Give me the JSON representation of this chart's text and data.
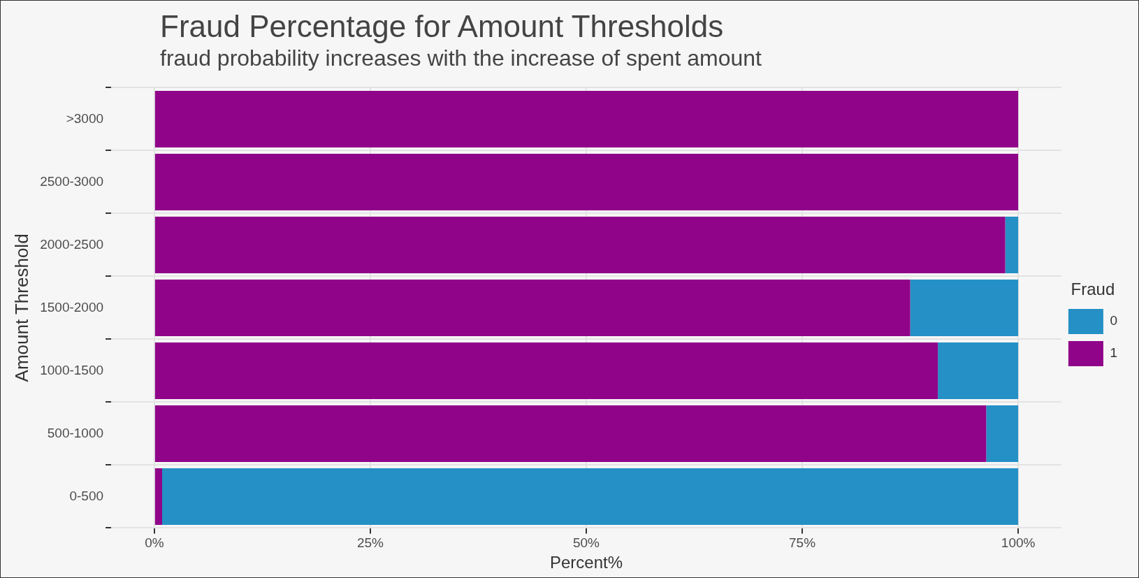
{
  "chart_data": {
    "type": "bar",
    "title": "Fraud Percentage for Amount Thresholds",
    "subtitle": "fraud probability increases with the increase of spent amount",
    "xlabel": "Percent%",
    "ylabel": "Amount Threshold",
    "legend_title": "Fraud",
    "orientation": "horizontal",
    "stacked": true,
    "categories": [
      ">3000",
      "2500-3000",
      "2000-2500",
      "1500-2000",
      "1000-1500",
      "500-1000",
      "0-500"
    ],
    "series": [
      {
        "name": "1",
        "color": "#8f0489",
        "values": [
          100,
          100,
          98.5,
          87.5,
          90.7,
          96.3,
          0.9
        ]
      },
      {
        "name": "0",
        "color": "#2590c5",
        "values": [
          0,
          0,
          1.5,
          12.5,
          9.3,
          3.7,
          99.1
        ]
      }
    ],
    "xlim": [
      -5,
      105
    ],
    "xticks": [
      {
        "value": 0,
        "label": "0%"
      },
      {
        "value": 25,
        "label": "25%"
      },
      {
        "value": 50,
        "label": "50%"
      },
      {
        "value": 75,
        "label": "75%"
      },
      {
        "value": 100,
        "label": "100%"
      }
    ],
    "grid": true,
    "legend": "right"
  }
}
